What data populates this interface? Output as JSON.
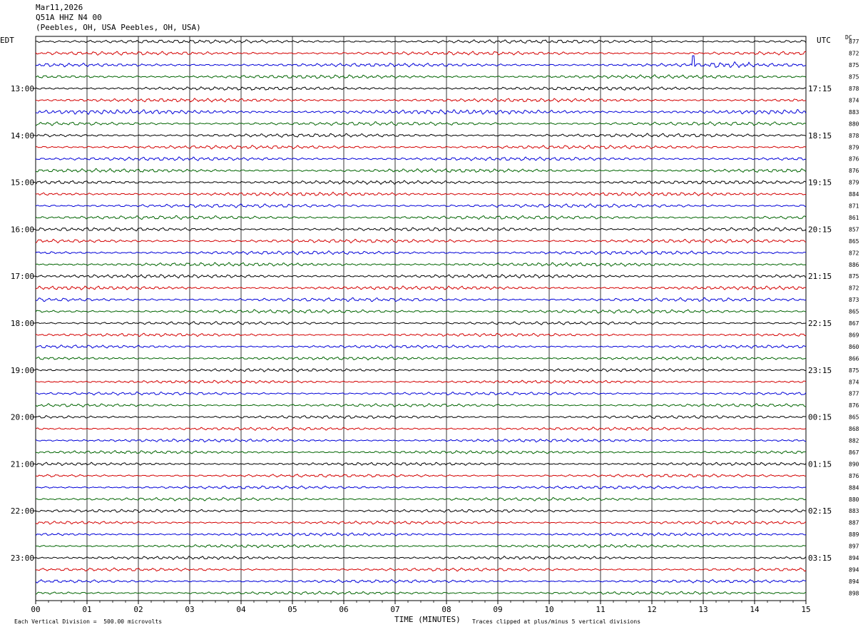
{
  "header": {
    "date": "Mar11,2026",
    "station": "Q51A HHZ N4 00",
    "location": "(Peebles, OH, USA Peebles, OH, USA)"
  },
  "left_axis_title": "EDT",
  "right_axis_title": "UTC",
  "dc_title": "DC",
  "footer": {
    "scale_note": "Each Vertical Division =  500.00 microvolts",
    "clip_note": "Traces clipped at plus/minus 5 vertical divisions"
  },
  "chart_data": {
    "type": "line",
    "title": "",
    "xlabel": "TIME (MINUTES)",
    "ylabel": "",
    "x_range": [
      0,
      15
    ],
    "x_ticks": [
      "00",
      "01",
      "02",
      "03",
      "04",
      "05",
      "06",
      "07",
      "08",
      "09",
      "10",
      "11",
      "12",
      "13",
      "14",
      "15"
    ],
    "grid": "vertical lines at each minute",
    "lines_per_hour": 4,
    "minutes_per_line": 15,
    "trace_colors": [
      "#000000",
      "#d40000",
      "#0000d8",
      "#006400"
    ],
    "left_hour_labels": [
      "13:00",
      "14:00",
      "15:00",
      "16:00",
      "17:00",
      "18:00",
      "19:00",
      "20:00",
      "21:00",
      "22:00",
      "23:00"
    ],
    "right_hour_labels": [
      "17:15",
      "18:15",
      "19:15",
      "20:15",
      "21:15",
      "22:15",
      "23:15",
      "00:15",
      "01:15",
      "02:15",
      "03:15"
    ],
    "dc_offsets": [
      877,
      872,
      875,
      875,
      878,
      874,
      883,
      880,
      878,
      879,
      876,
      876,
      879,
      884,
      871,
      861,
      857,
      865,
      872,
      886,
      875,
      872,
      873,
      865,
      867,
      869,
      860,
      866,
      875,
      874,
      877,
      876,
      865,
      868,
      882,
      867,
      890,
      876,
      884,
      880,
      883,
      887,
      889,
      897,
      894,
      894,
      894,
      898
    ],
    "events": [
      {
        "trace": 2,
        "minute": 12.8,
        "note": "spike"
      },
      {
        "trace": 2,
        "minute": 13.5,
        "note": "burst"
      },
      {
        "trace": 6,
        "minute": 6.5,
        "note": "noisy"
      }
    ]
  }
}
